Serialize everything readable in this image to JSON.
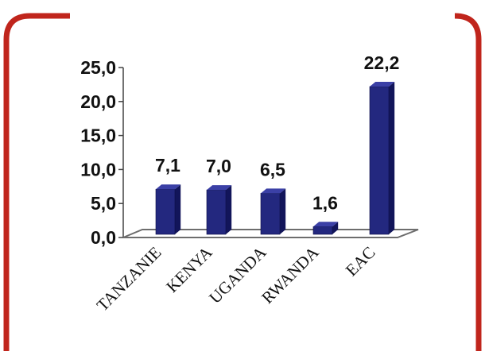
{
  "chart_data": {
    "type": "bar",
    "categories": [
      "TANZANIE",
      "KENYA",
      "UGANDA",
      "RWANDA",
      "EAC"
    ],
    "values": [
      7.1,
      7.0,
      6.5,
      1.6,
      22.2
    ],
    "value_labels": [
      "7,1",
      "7,0",
      "6,5",
      "1,6",
      "22,2"
    ],
    "yticks": [
      "0,0",
      "5,0",
      "10,0",
      "15,0",
      "20,0",
      "25,0"
    ],
    "ylim": [
      0,
      25
    ],
    "title": "",
    "xlabel": "",
    "ylabel": "",
    "grid": false,
    "legend": "none",
    "style": "3d-column"
  },
  "colors": {
    "frame": "#c0251c",
    "bar_front": "#23287f",
    "bar_side": "#12155a",
    "bar_top": "#3b40a6",
    "floor": "#6d6d6d"
  }
}
